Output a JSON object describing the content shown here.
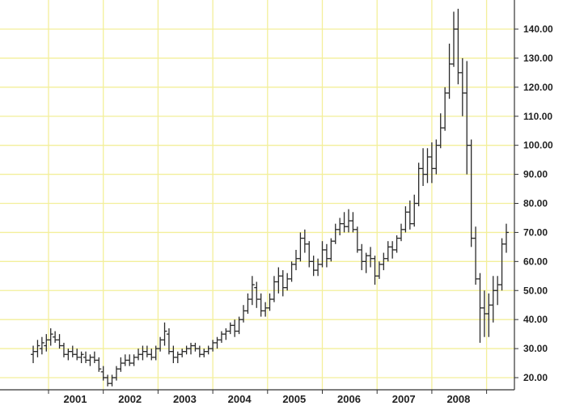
{
  "chart_data": {
    "type": "ohlc",
    "title": "",
    "xlabel": "",
    "ylabel": "",
    "ylim": [
      15,
      147
    ],
    "y_ticks": [
      "20.00",
      "30.00",
      "40.00",
      "50.00",
      "60.00",
      "70.00",
      "80.00",
      "90.00",
      "100.00",
      "110.00",
      "120.00",
      "130.00",
      "140.00"
    ],
    "x_tick_labels": [
      "2001",
      "2002",
      "2003",
      "2004",
      "2005",
      "2006",
      "2007",
      "2008"
    ],
    "grid": true,
    "colors": {
      "grid": "#f3ef9a",
      "bars": "#2a2a2a",
      "axis": "#333333",
      "background": "#ffffff"
    },
    "series": [
      {
        "name": "",
        "values": [
          [
            2000.72,
            28,
            31,
            25,
            29
          ],
          [
            2000.8,
            29,
            33,
            27,
            31
          ],
          [
            2000.88,
            30,
            34,
            28,
            32
          ],
          [
            2000.96,
            31,
            35,
            29,
            33
          ],
          [
            2001.04,
            33,
            37,
            31,
            35
          ],
          [
            2001.12,
            34,
            36,
            32,
            33
          ],
          [
            2001.2,
            33,
            35,
            30,
            31
          ],
          [
            2001.28,
            31,
            32,
            27,
            28
          ],
          [
            2001.36,
            28,
            30,
            26,
            29
          ],
          [
            2001.44,
            29,
            31,
            27,
            28
          ],
          [
            2001.52,
            28,
            30,
            26,
            27
          ],
          [
            2001.6,
            27,
            29,
            25,
            28
          ],
          [
            2001.68,
            27,
            29,
            25,
            26
          ],
          [
            2001.76,
            26,
            28,
            24,
            27
          ],
          [
            2001.84,
            27,
            29,
            25,
            26
          ],
          [
            2001.92,
            26,
            27,
            22,
            23
          ],
          [
            2002.0,
            22,
            24,
            19,
            20
          ],
          [
            2002.08,
            20,
            21,
            17,
            18
          ],
          [
            2002.16,
            18,
            21,
            17,
            20
          ],
          [
            2002.24,
            20,
            24,
            19,
            23
          ],
          [
            2002.32,
            23,
            27,
            22,
            25
          ],
          [
            2002.4,
            25,
            28,
            24,
            26
          ],
          [
            2002.48,
            26,
            28,
            24,
            25
          ],
          [
            2002.56,
            25,
            28,
            24,
            27
          ],
          [
            2002.64,
            27,
            30,
            26,
            28
          ],
          [
            2002.72,
            28,
            31,
            26,
            29
          ],
          [
            2002.8,
            29,
            31,
            27,
            28
          ],
          [
            2002.88,
            28,
            30,
            26,
            27
          ],
          [
            2002.96,
            27,
            31,
            26,
            30
          ],
          [
            2003.04,
            30,
            34,
            29,
            33
          ],
          [
            2003.12,
            33,
            39,
            31,
            36
          ],
          [
            2003.2,
            35,
            37,
            28,
            29
          ],
          [
            2003.28,
            29,
            31,
            25,
            27
          ],
          [
            2003.36,
            27,
            29,
            25,
            28
          ],
          [
            2003.44,
            28,
            30,
            27,
            29
          ],
          [
            2003.52,
            29,
            31,
            28,
            30
          ],
          [
            2003.6,
            30,
            32,
            28,
            31
          ],
          [
            2003.68,
            31,
            32,
            29,
            30
          ],
          [
            2003.76,
            30,
            31,
            27,
            28
          ],
          [
            2003.84,
            28,
            30,
            27,
            29
          ],
          [
            2003.92,
            29,
            31,
            28,
            30
          ],
          [
            2004.0,
            30,
            33,
            29,
            32
          ],
          [
            2004.08,
            32,
            34,
            30,
            33
          ],
          [
            2004.16,
            33,
            36,
            32,
            35
          ],
          [
            2004.24,
            35,
            37,
            33,
            36
          ],
          [
            2004.32,
            36,
            39,
            35,
            38
          ],
          [
            2004.4,
            38,
            40,
            34,
            36
          ],
          [
            2004.48,
            36,
            41,
            35,
            40
          ],
          [
            2004.56,
            40,
            45,
            39,
            43
          ],
          [
            2004.64,
            43,
            49,
            42,
            47
          ],
          [
            2004.72,
            47,
            55,
            45,
            52
          ],
          [
            2004.8,
            51,
            53,
            44,
            47
          ],
          [
            2004.88,
            47,
            49,
            41,
            43
          ],
          [
            2004.96,
            43,
            46,
            41,
            44
          ],
          [
            2005.04,
            44,
            49,
            43,
            47
          ],
          [
            2005.12,
            47,
            55,
            46,
            53
          ],
          [
            2005.2,
            53,
            58,
            49,
            55
          ],
          [
            2005.28,
            55,
            57,
            48,
            51
          ],
          [
            2005.36,
            51,
            56,
            50,
            54
          ],
          [
            2005.44,
            54,
            60,
            53,
            59
          ],
          [
            2005.52,
            59,
            64,
            57,
            61
          ],
          [
            2005.6,
            61,
            70,
            60,
            68
          ],
          [
            2005.68,
            68,
            71,
            63,
            66
          ],
          [
            2005.76,
            66,
            67,
            58,
            60
          ],
          [
            2005.84,
            60,
            62,
            55,
            57
          ],
          [
            2005.92,
            57,
            61,
            55,
            59
          ],
          [
            2006.0,
            59,
            67,
            58,
            64
          ],
          [
            2006.08,
            64,
            66,
            58,
            61
          ],
          [
            2006.16,
            61,
            68,
            60,
            67
          ],
          [
            2006.24,
            67,
            73,
            66,
            71
          ],
          [
            2006.32,
            71,
            75,
            69,
            73
          ],
          [
            2006.4,
            73,
            77,
            70,
            72
          ],
          [
            2006.48,
            72,
            78,
            70,
            74
          ],
          [
            2006.56,
            74,
            77,
            70,
            71
          ],
          [
            2006.64,
            71,
            72,
            63,
            64
          ],
          [
            2006.72,
            64,
            66,
            57,
            60
          ],
          [
            2006.8,
            60,
            63,
            56,
            62
          ],
          [
            2006.88,
            62,
            65,
            58,
            61
          ],
          [
            2006.96,
            61,
            62,
            52,
            55
          ],
          [
            2007.04,
            55,
            60,
            54,
            59
          ],
          [
            2007.12,
            59,
            63,
            57,
            61
          ],
          [
            2007.2,
            61,
            67,
            60,
            65
          ],
          [
            2007.28,
            65,
            67,
            61,
            64
          ],
          [
            2007.36,
            64,
            69,
            63,
            68
          ],
          [
            2007.44,
            68,
            73,
            67,
            71
          ],
          [
            2007.52,
            71,
            79,
            70,
            77
          ],
          [
            2007.6,
            77,
            81,
            71,
            73
          ],
          [
            2007.68,
            73,
            83,
            72,
            80
          ],
          [
            2007.76,
            80,
            94,
            79,
            92
          ],
          [
            2007.84,
            92,
            99,
            86,
            90
          ],
          [
            2007.92,
            90,
            99,
            87,
            96
          ],
          [
            2008.0,
            96,
            101,
            87,
            92
          ],
          [
            2008.08,
            92,
            102,
            90,
            100
          ],
          [
            2008.16,
            100,
            111,
            99,
            106
          ],
          [
            2008.24,
            106,
            120,
            105,
            118
          ],
          [
            2008.32,
            118,
            135,
            116,
            128
          ],
          [
            2008.4,
            128,
            146,
            127,
            140
          ],
          [
            2008.48,
            140,
            147,
            121,
            125
          ],
          [
            2008.56,
            125,
            130,
            110,
            118
          ],
          [
            2008.64,
            118,
            129,
            90,
            100
          ],
          [
            2008.72,
            100,
            102,
            65,
            68
          ],
          [
            2008.8,
            68,
            72,
            52,
            54
          ],
          [
            2008.88,
            54,
            56,
            32,
            44
          ],
          [
            2008.96,
            44,
            50,
            34,
            42
          ],
          [
            2009.04,
            42,
            49,
            34,
            45
          ],
          [
            2009.12,
            45,
            55,
            39,
            50
          ],
          [
            2009.2,
            50,
            55,
            45,
            52
          ],
          [
            2009.28,
            52,
            68,
            50,
            66
          ],
          [
            2009.36,
            66,
            73,
            63,
            70
          ]
        ]
      }
    ]
  }
}
